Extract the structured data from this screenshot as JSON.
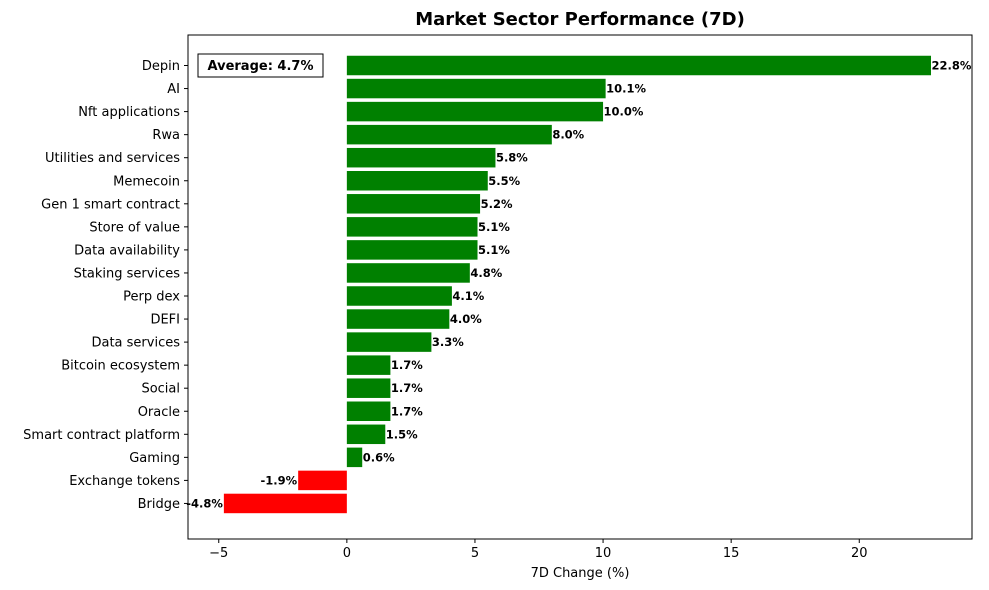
{
  "chart_data": {
    "type": "bar",
    "orientation": "horizontal",
    "title": "Market Sector Performance (7D)",
    "xlabel": "7D Change (%)",
    "ylabel": "",
    "xlim": [
      -6.2,
      24.4
    ],
    "xticks": [
      -5,
      0,
      5,
      10,
      15,
      20
    ],
    "xtick_labels": [
      "−5",
      "0",
      "5",
      "10",
      "15",
      "20"
    ],
    "grid": false,
    "annotation": "Average: 4.7%",
    "positive_color": "#008000",
    "negative_color": "#ff0000",
    "categories": [
      "Depin",
      "AI",
      "Nft applications",
      "Rwa",
      "Utilities and services",
      "Memecoin",
      "Gen 1 smart contract",
      "Store of value",
      "Data availability",
      "Staking services",
      "Perp dex",
      "DEFI",
      "Data services",
      "Bitcoin ecosystem",
      "Social",
      "Oracle",
      "Smart contract platform",
      "Gaming",
      "Exchange tokens",
      "Bridge"
    ],
    "values": [
      22.8,
      10.1,
      10.0,
      8.0,
      5.8,
      5.5,
      5.2,
      5.1,
      5.1,
      4.8,
      4.1,
      4.0,
      3.3,
      1.7,
      1.7,
      1.7,
      1.5,
      0.6,
      -1.9,
      -4.8
    ],
    "value_labels": [
      "22.8%",
      "10.1%",
      "10.0%",
      "8.0%",
      "5.8%",
      "5.5%",
      "5.2%",
      "5.1%",
      "5.1%",
      "4.8%",
      "4.1%",
      "4.0%",
      "3.3%",
      "1.7%",
      "1.7%",
      "1.7%",
      "1.5%",
      "0.6%",
      "-1.9%",
      "-4.8%"
    ]
  }
}
